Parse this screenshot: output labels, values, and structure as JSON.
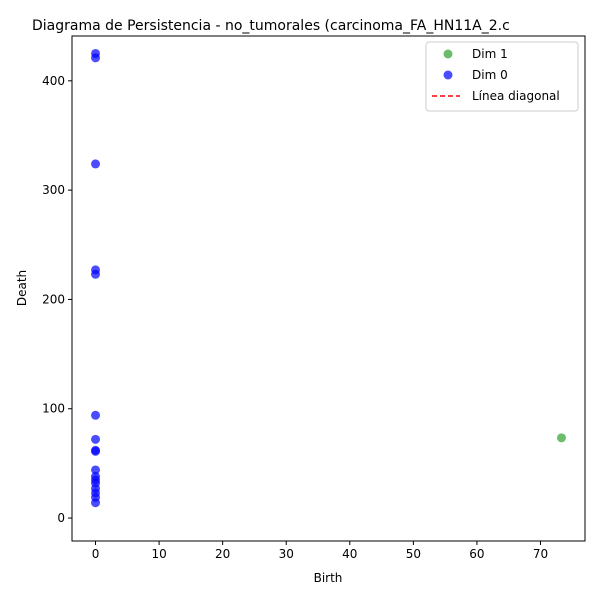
{
  "chart_data": {
    "type": "scatter",
    "title": "Diagrama de Persistencia - no_tumorales (carcinoma_FA_HN11A_2.c",
    "xlabel": "Birth",
    "ylabel": "Death",
    "xlim": [
      -3.7,
      77.0
    ],
    "ylim": [
      -21.0,
      441.0
    ],
    "x_ticks": [
      0,
      10,
      20,
      30,
      40,
      50,
      60,
      70
    ],
    "y_ticks": [
      0,
      100,
      200,
      300,
      400
    ],
    "grid": false,
    "legend_position": "top-right",
    "series": [
      {
        "name": "Dim 1",
        "color": "#2ca02c",
        "points": [
          [
            73.3,
            73.4
          ]
        ]
      },
      {
        "name": "Dim 0",
        "color": "#0000ff",
        "points": [
          [
            0,
            425
          ],
          [
            0,
            421
          ],
          [
            0,
            324
          ],
          [
            0,
            227
          ],
          [
            0,
            223
          ],
          [
            0,
            94
          ],
          [
            0,
            72
          ],
          [
            0,
            62
          ],
          [
            0,
            61
          ],
          [
            0,
            44
          ],
          [
            0,
            38
          ],
          [
            0,
            35
          ],
          [
            0,
            32
          ],
          [
            0,
            27
          ],
          [
            0,
            23
          ],
          [
            0,
            19
          ],
          [
            0,
            14
          ]
        ]
      }
    ],
    "reference_line": {
      "name": "Línea diagonal",
      "color": "#ff0000",
      "style": "dashed"
    }
  }
}
